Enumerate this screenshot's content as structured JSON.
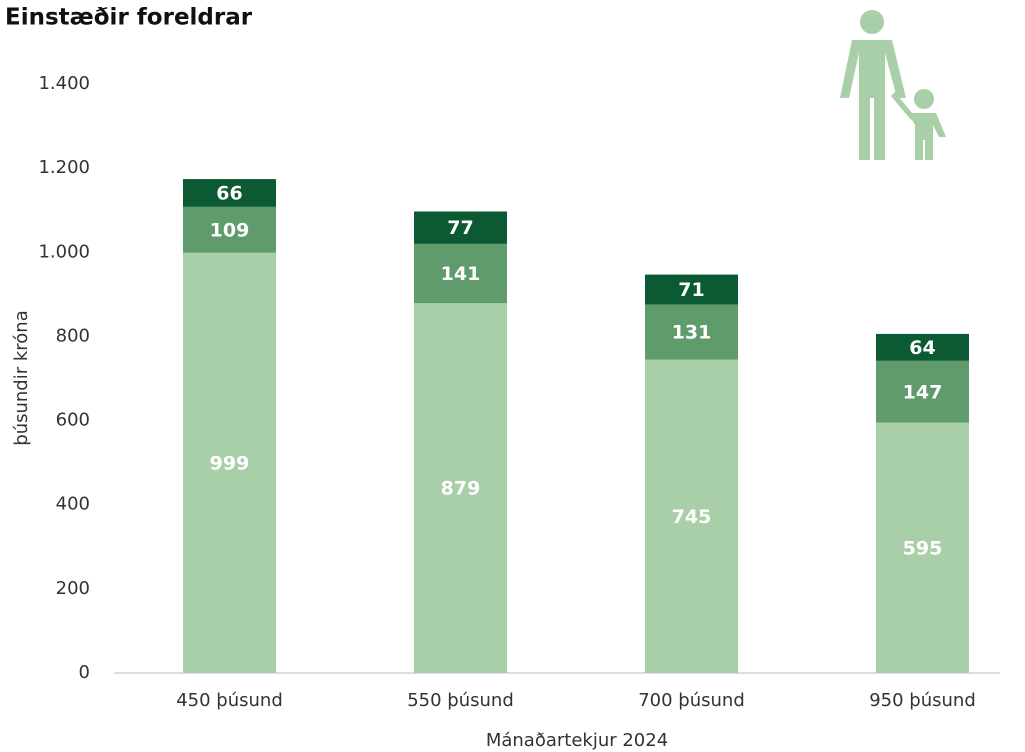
{
  "chart_data": {
    "type": "stacked_bar",
    "title": "Einstæðir foreldrar",
    "xlabel": "Mánaðartekjur 2024",
    "ylabel": "þúsundir króna",
    "categories": [
      "450 þúsund",
      "550 þúsund",
      "700 þúsund",
      "950 þúsund"
    ],
    "series": [
      {
        "color": "#a9cfa9",
        "values": [
          999,
          879,
          745,
          595
        ]
      },
      {
        "color": "#5f9b6b",
        "values": [
          109,
          141,
          131,
          147
        ]
      },
      {
        "color": "#0b5a33",
        "values": [
          66,
          77,
          71,
          64
        ]
      }
    ],
    "ylim": [
      0,
      1400
    ],
    "yticks": [
      0,
      200,
      400,
      600,
      800,
      {
        "value": 1000,
        "label": "1.000"
      },
      {
        "value": 1200,
        "label": "1.200"
      },
      {
        "value": 1400,
        "label": "1.400"
      }
    ],
    "grid": false
  }
}
